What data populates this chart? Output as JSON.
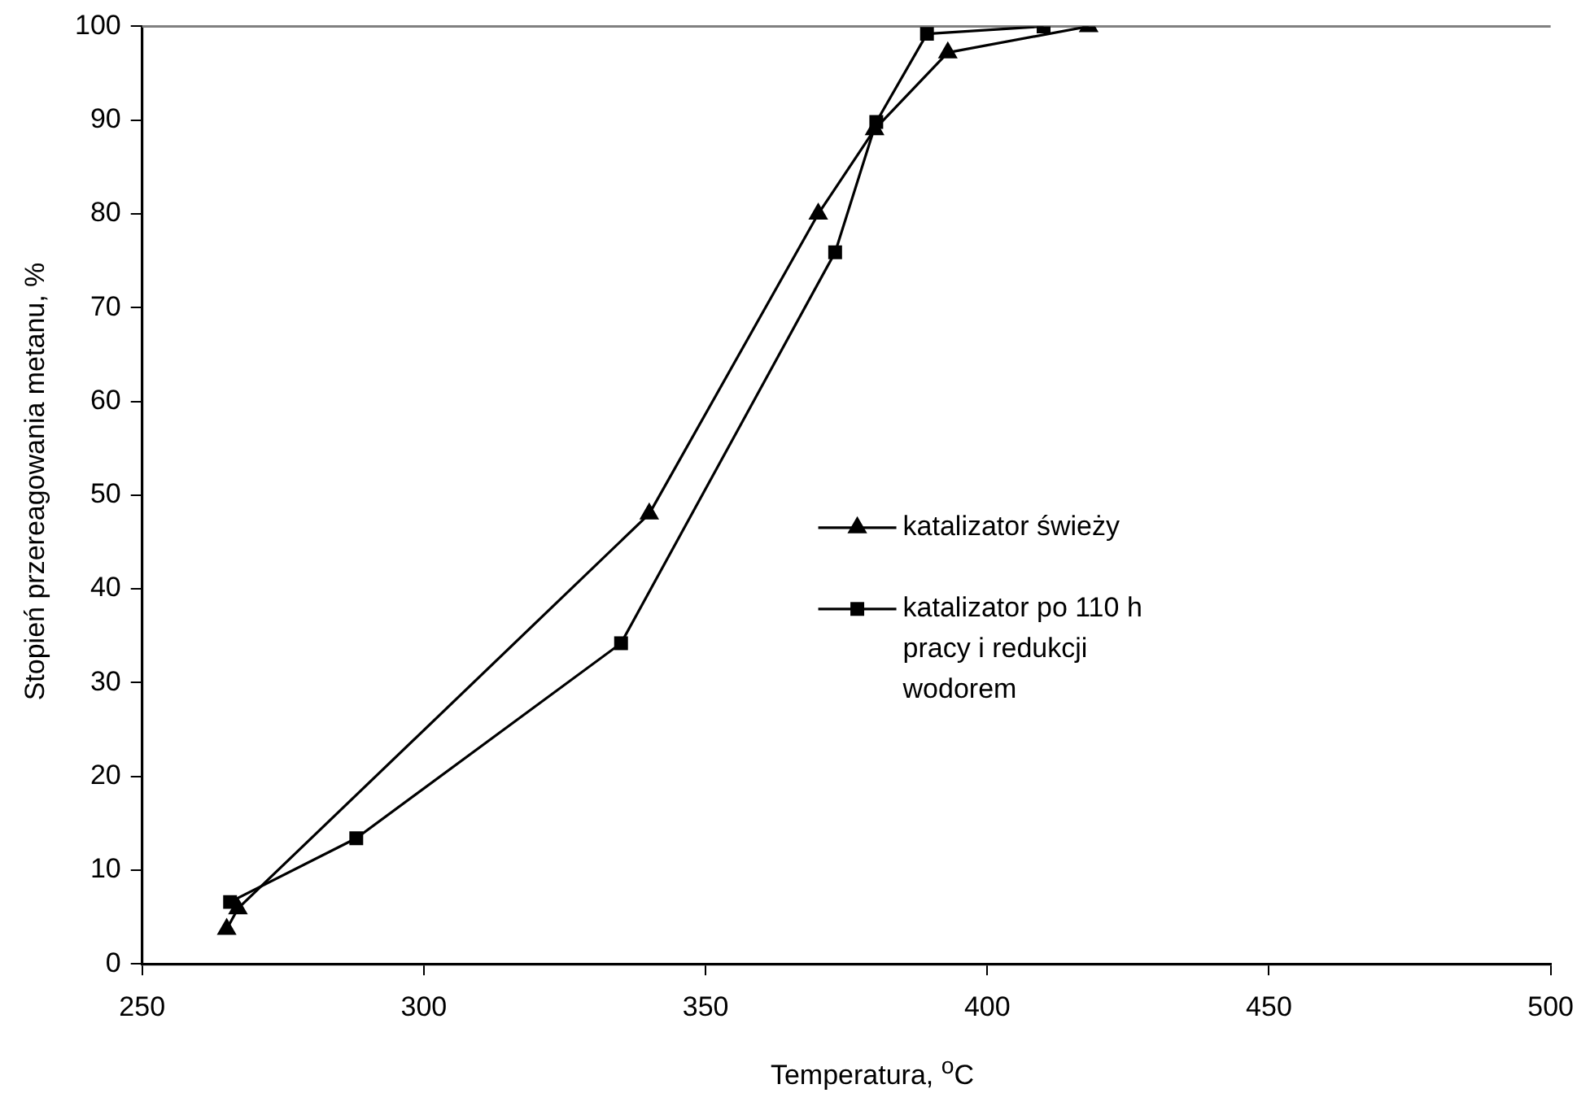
{
  "chart_data": {
    "type": "line",
    "xlabel": "Temperatura, $^{o}$C",
    "ylabel": "Stopień przereagowania metanu, %",
    "xlim": [
      250,
      500
    ],
    "xticks": [
      250,
      300,
      350,
      400,
      450,
      500
    ],
    "ylim": [
      0,
      100
    ],
    "yticks": [
      0,
      10,
      20,
      30,
      40,
      50,
      60,
      70,
      80,
      90,
      100
    ],
    "grid": false,
    "legend": "right",
    "line_style": "solid",
    "series": [
      {
        "name": "katalizator świeży",
        "color": "#000000",
        "marker": "triangle",
        "x": [
          265,
          267,
          340,
          370,
          380,
          393,
          418
        ],
        "values": [
          3.7,
          5.9,
          48,
          80,
          89,
          97.2,
          100
        ]
      },
      {
        "name": "katalizator po 110 h pracy i redukcji wodorem",
        "color": "#000000",
        "marker": "square",
        "x": [
          265.6,
          288,
          335,
          373,
          380.3,
          389.3,
          410
        ],
        "values": [
          6.6,
          13.4,
          34.2,
          75.9,
          89.8,
          99.2,
          100
        ]
      }
    ]
  }
}
